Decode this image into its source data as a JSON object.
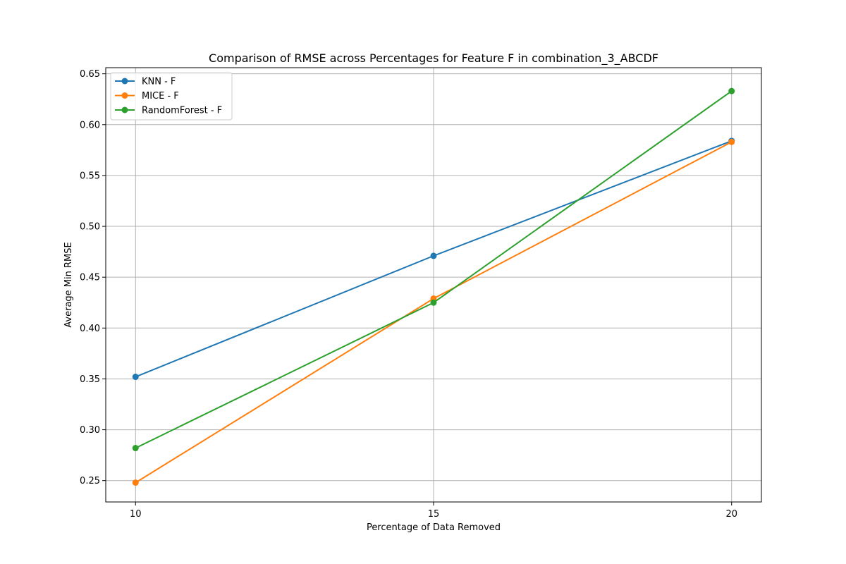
{
  "chart_data": {
    "type": "line",
    "title": "Comparison of RMSE across Percentages for Feature F in combination_3_ABCDF",
    "xlabel": "Percentage of Data Removed",
    "ylabel": "Average Min RMSE",
    "x": [
      10,
      15,
      20
    ],
    "x_ticks": [
      "10",
      "15",
      "20"
    ],
    "y_ticks": [
      "0.25",
      "0.30",
      "0.35",
      "0.40",
      "0.45",
      "0.50",
      "0.55",
      "0.60",
      "0.65"
    ],
    "xlim": [
      9.5,
      20.5
    ],
    "ylim": [
      0.229,
      0.656
    ],
    "grid": true,
    "legend_position": "top-left",
    "series": [
      {
        "name": "KNN - F",
        "color": "#1f77b4",
        "values": [
          0.352,
          0.471,
          0.584
        ]
      },
      {
        "name": "MICE - F",
        "color": "#ff7f0e",
        "values": [
          0.248,
          0.429,
          0.583
        ]
      },
      {
        "name": "RandomForest - F",
        "color": "#2ca02c",
        "values": [
          0.282,
          0.425,
          0.633
        ]
      }
    ]
  }
}
